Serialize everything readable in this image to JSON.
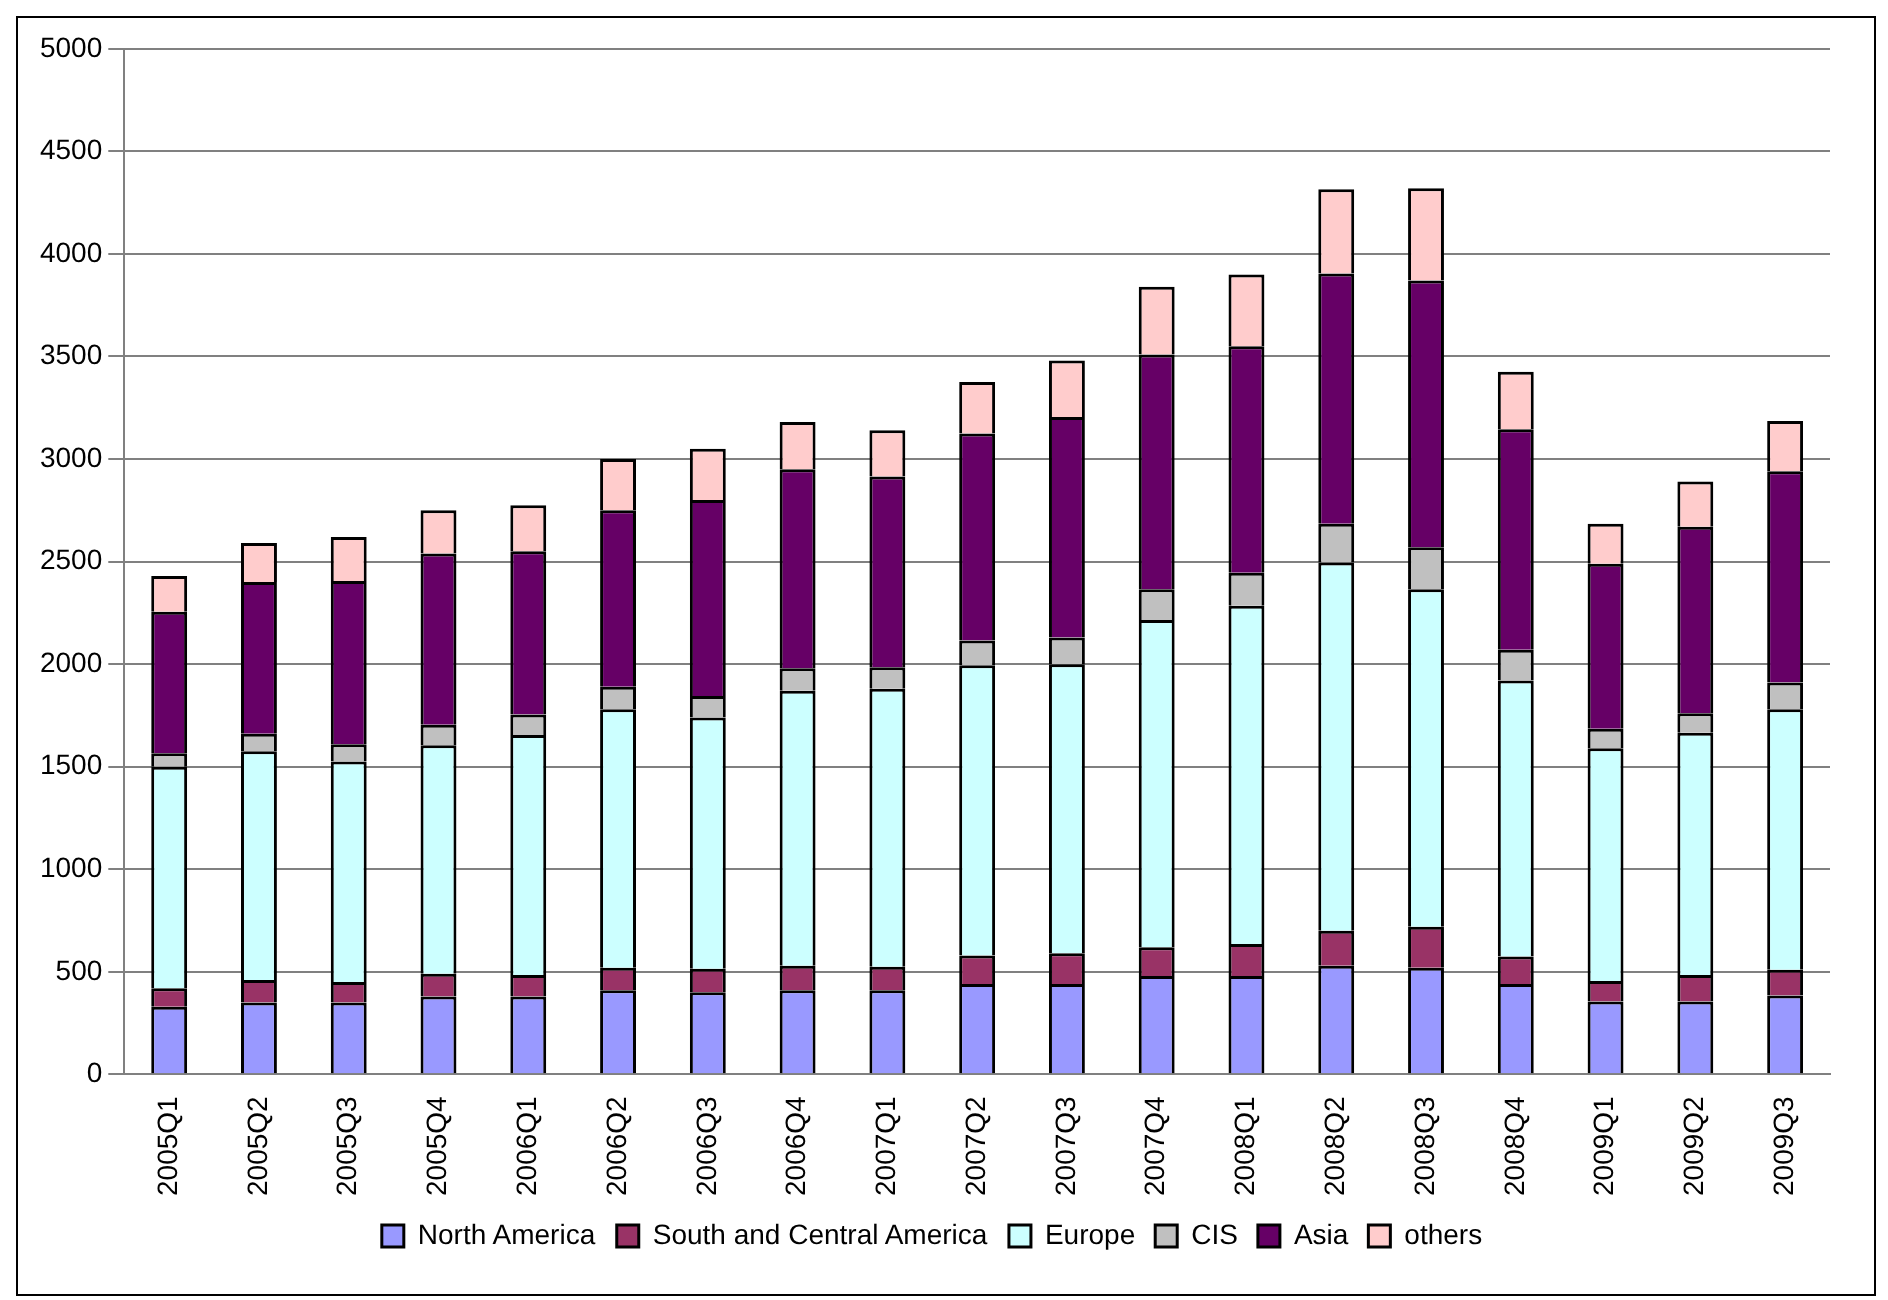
{
  "chart_data": {
    "type": "bar",
    "stacked": true,
    "categories": [
      "2005Q1",
      "2005Q2",
      "2005Q3",
      "2005Q4",
      "2006Q1",
      "2006Q2",
      "2006Q3",
      "2006Q4",
      "2007Q1",
      "2007Q2",
      "2007Q3",
      "2007Q4",
      "2008Q1",
      "2008Q2",
      "2008Q3",
      "2008Q4",
      "2009Q1",
      "2009Q2",
      "2009Q3"
    ],
    "series": [
      {
        "name": "North America",
        "color": "#9999ff",
        "values": [
          330,
          350,
          350,
          380,
          380,
          410,
          400,
          410,
          410,
          440,
          440,
          480,
          480,
          530,
          520,
          440,
          355,
          355,
          385
        ]
      },
      {
        "name": "South and Central America",
        "color": "#993366",
        "values": [
          90,
          110,
          100,
          110,
          105,
          110,
          115,
          120,
          115,
          140,
          150,
          140,
          155,
          170,
          200,
          135,
          100,
          130,
          125
        ]
      },
      {
        "name": "Europe",
        "color": "#ccffff",
        "values": [
          1080,
          1115,
          1075,
          1115,
          1170,
          1260,
          1225,
          1340,
          1355,
          1415,
          1410,
          1595,
          1650,
          1795,
          1645,
          1345,
          1135,
          1180,
          1270
        ]
      },
      {
        "name": "CIS",
        "color": "#c0c0c0",
        "values": [
          65,
          85,
          85,
          100,
          100,
          110,
          105,
          110,
          105,
          120,
          130,
          150,
          160,
          190,
          205,
          150,
          95,
          95,
          130
        ]
      },
      {
        "name": "Asia",
        "color": "#660066",
        "values": [
          690,
          740,
          795,
          835,
          795,
          860,
          955,
          970,
          930,
          1010,
          1075,
          1145,
          1105,
          1220,
          1300,
          1075,
          805,
          910,
          1030
        ]
      },
      {
        "name": "others",
        "color": "#ffcccc",
        "values": [
          175,
          190,
          215,
          210,
          225,
          250,
          250,
          230,
          225,
          250,
          275,
          330,
          350,
          410,
          450,
          280,
          195,
          220,
          245
        ]
      }
    ],
    "ylim": [
      0,
      5000
    ],
    "yticks": [
      0,
      500,
      1000,
      1500,
      2000,
      2500,
      3000,
      3500,
      4000,
      4500,
      5000
    ],
    "grid": "y",
    "legend": "bottom"
  }
}
